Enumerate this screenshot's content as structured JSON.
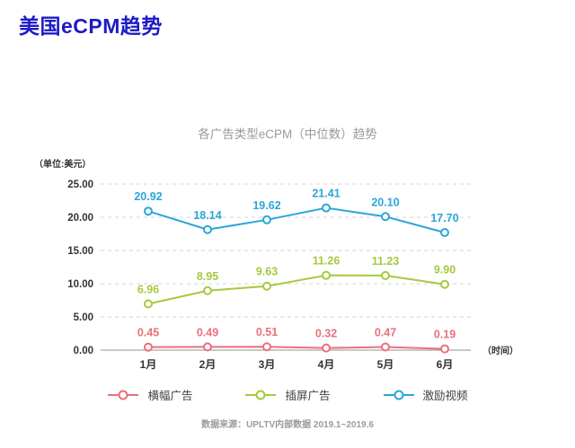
{
  "page": {
    "title": "美国eCPM趋势",
    "footer": "数据来源：UPLTV内部数据 2019.1~2019.6"
  },
  "colors": {
    "page_title": "#1d1ac6",
    "chart_title_text": "#9a9a9a",
    "axis_text": "#333333",
    "gridline": "#d6d6d6",
    "axis_line": "#909090",
    "footer_text": "#9b9b9b"
  },
  "chart_data": {
    "type": "line",
    "title": "各广告类型eCPM（中位数）趋势",
    "unit_label": "（单位:美元）",
    "time_label": "（时间）",
    "xlabel": "时间",
    "ylabel": "单位:美元",
    "categories": [
      "1月",
      "2月",
      "3月",
      "4月",
      "5月",
      "6月"
    ],
    "ylim": [
      0,
      25
    ],
    "yticks": [
      0,
      5,
      10,
      15,
      20,
      25
    ],
    "ytick_labels": [
      "0.00",
      "5.00",
      "10.00",
      "15.00",
      "20.00",
      "25.00"
    ],
    "grid": "horizontal-dashed",
    "legend_position": "bottom",
    "marker": "open-circle",
    "series": [
      {
        "name": "横幅广告",
        "color": "#e9707b",
        "values": [
          0.45,
          0.49,
          0.51,
          0.32,
          0.47,
          0.19
        ]
      },
      {
        "name": "插屏广告",
        "color": "#a6c93d",
        "values": [
          6.96,
          8.95,
          9.63,
          11.26,
          11.23,
          9.9
        ]
      },
      {
        "name": "激励视频",
        "color": "#2aa6d8",
        "values": [
          20.92,
          18.14,
          19.62,
          21.41,
          20.1,
          17.7
        ]
      }
    ]
  }
}
